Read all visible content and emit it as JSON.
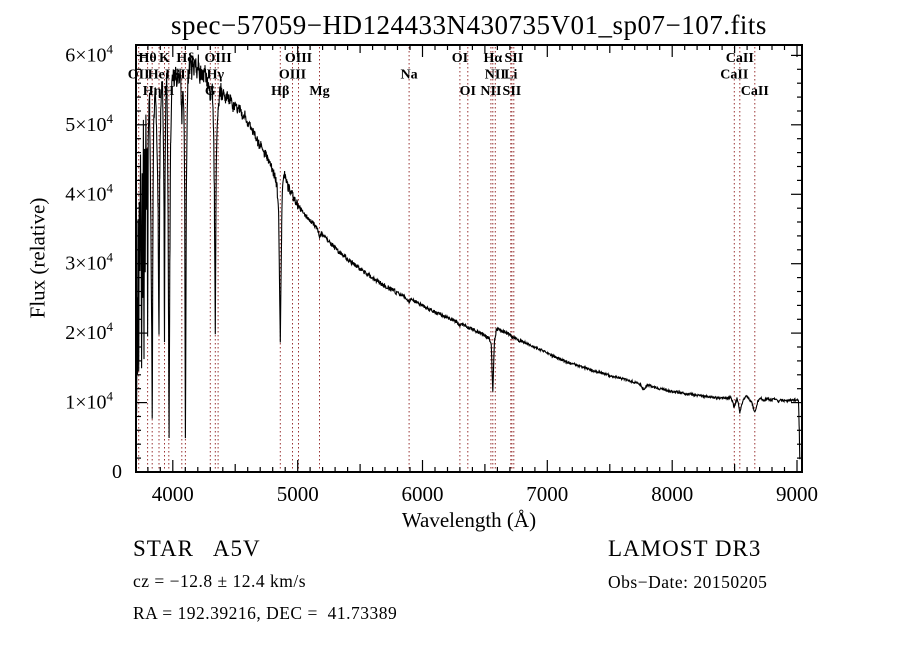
{
  "page": {
    "background": "#ffffff"
  },
  "title": "spec−57059−HD124433N430735V01_sp07−107.fits",
  "annotations": {
    "class_label": "STAR   A5V",
    "survey": "LAMOST DR3",
    "cz": "cz = −12.8 ± 12.4 km/s",
    "obs_date": "Obs−Date: 20150205",
    "radec": "RA = 192.39216, DEC =  41.73389"
  },
  "chart_data": {
    "type": "line",
    "title": "spec−57059−HD124433N430735V01_sp07−107.fits",
    "xlabel": "Wavelength (Å)",
    "ylabel": "Flux (relative)",
    "xlim": [
      3705,
      9040
    ],
    "ylim": [
      0,
      61500
    ],
    "grid": false,
    "legend": "none",
    "x_major_ticks": [
      4000,
      5000,
      6000,
      7000,
      8000,
      9000
    ],
    "y_major_ticks": [
      {
        "f": 0,
        "base": "0",
        "exp": ""
      },
      {
        "f": 10000,
        "base": "1×10",
        "exp": "4"
      },
      {
        "f": 20000,
        "base": "2×10",
        "exp": "4"
      },
      {
        "f": 30000,
        "base": "3×10",
        "exp": "4"
      },
      {
        "f": 40000,
        "base": "4×10",
        "exp": "4"
      },
      {
        "f": 50000,
        "base": "5×10",
        "exp": "4"
      },
      {
        "f": 60000,
        "base": "6×10",
        "exp": "4"
      }
    ],
    "line_color": "#000000",
    "spectral_line_color": "#993333",
    "spectral_lines": [
      {
        "name": "OII",
        "wavelength": 3727,
        "row": 2
      },
      {
        "name": "Hθ",
        "wavelength": 3798,
        "row": 1
      },
      {
        "name": "Hη",
        "wavelength": 3835,
        "row": 3
      },
      {
        "name": "HeI",
        "wavelength": 3889,
        "row": 2
      },
      {
        "name": "K",
        "wavelength": 3933,
        "row": 1
      },
      {
        "name": "H",
        "wavelength": 3968,
        "row": 3
      },
      {
        "name": "SII",
        "wavelength": 4072,
        "row": 2
      },
      {
        "name": "Hδ",
        "wavelength": 4101,
        "row": 1
      },
      {
        "name": "G",
        "wavelength": 4300,
        "row": 3
      },
      {
        "name": "Hγ",
        "wavelength": 4340,
        "row": 2
      },
      {
        "name": "OIII",
        "wavelength": 4363,
        "row": 1
      },
      {
        "name": "Hβ",
        "wavelength": 4861,
        "row": 3
      },
      {
        "name": "OIII",
        "wavelength": 4959,
        "row": 2
      },
      {
        "name": "OIII",
        "wavelength": 5007,
        "row": 1
      },
      {
        "name": "Mg",
        "wavelength": 5175,
        "row": 3
      },
      {
        "name": "Na",
        "wavelength": 5893,
        "row": 2
      },
      {
        "name": "OI",
        "wavelength": 6300,
        "row": 1
      },
      {
        "name": "OI",
        "wavelength": 6363,
        "row": 3
      },
      {
        "name": "NII",
        "wavelength": 6548,
        "row": 3
      },
      {
        "name": "Hα",
        "wavelength": 6563,
        "row": 1
      },
      {
        "name": "NII",
        "wavelength": 6583,
        "row": 2
      },
      {
        "name": "Li",
        "wavelength": 6707,
        "row": 2
      },
      {
        "name": "SII",
        "wavelength": 6716,
        "row": 3
      },
      {
        "name": "SII",
        "wavelength": 6731,
        "row": 1
      },
      {
        "name": "CaII",
        "wavelength": 8498,
        "row": 2
      },
      {
        "name": "CaII",
        "wavelength": 8542,
        "row": 1
      },
      {
        "name": "CaII",
        "wavelength": 8662,
        "row": 3
      }
    ],
    "spectrum_anchors": [
      [
        3710,
        9000
      ],
      [
        3714,
        26000
      ],
      [
        3717,
        14000
      ],
      [
        3721,
        36000
      ],
      [
        3725,
        20000
      ],
      [
        3727,
        15000
      ],
      [
        3731,
        40000
      ],
      [
        3736,
        28000
      ],
      [
        3741,
        46000
      ],
      [
        3746,
        33000
      ],
      [
        3750,
        14000
      ],
      [
        3755,
        43000
      ],
      [
        3759,
        24000
      ],
      [
        3764,
        50000
      ],
      [
        3769,
        17000
      ],
      [
        3774,
        47000
      ],
      [
        3779,
        29000
      ],
      [
        3784,
        51000
      ],
      [
        3790,
        38000
      ],
      [
        3794,
        46000
      ],
      [
        3798,
        19000
      ],
      [
        3803,
        47000
      ],
      [
        3808,
        52000
      ],
      [
        3814,
        53500
      ],
      [
        3820,
        42000
      ],
      [
        3827,
        29000
      ],
      [
        3831,
        20000
      ],
      [
        3835,
        7000
      ],
      [
        3840,
        33000
      ],
      [
        3846,
        50000
      ],
      [
        3853,
        53000
      ],
      [
        3860,
        55000
      ],
      [
        3868,
        51500
      ],
      [
        3875,
        46000
      ],
      [
        3882,
        38000
      ],
      [
        3889,
        19500
      ],
      [
        3895,
        42000
      ],
      [
        3903,
        52000
      ],
      [
        3910,
        55500
      ],
      [
        3918,
        56000
      ],
      [
        3925,
        47000
      ],
      [
        3929,
        38000
      ],
      [
        3933,
        18000
      ],
      [
        3938,
        44000
      ],
      [
        3944,
        54000
      ],
      [
        3950,
        56500
      ],
      [
        3956,
        52000
      ],
      [
        3962,
        36000
      ],
      [
        3966,
        20000
      ],
      [
        3970,
        4500
      ],
      [
        3976,
        30000
      ],
      [
        3982,
        47000
      ],
      [
        3989,
        54000
      ],
      [
        3996,
        56500
      ],
      [
        4004,
        57000
      ],
      [
        4012,
        55500
      ],
      [
        4020,
        57500
      ],
      [
        4030,
        56000
      ],
      [
        4040,
        58000
      ],
      [
        4050,
        57000
      ],
      [
        4060,
        58500
      ],
      [
        4068,
        53000
      ],
      [
        4074,
        51000
      ],
      [
        4082,
        55500
      ],
      [
        4090,
        50000
      ],
      [
        4095,
        40000
      ],
      [
        4101,
        4000
      ],
      [
        4108,
        40000
      ],
      [
        4115,
        52000
      ],
      [
        4122,
        56500
      ],
      [
        4130,
        58000
      ],
      [
        4140,
        59000
      ],
      [
        4150,
        57500
      ],
      [
        4160,
        59500
      ],
      [
        4170,
        58000
      ],
      [
        4182,
        59000
      ],
      [
        4194,
        57500
      ],
      [
        4206,
        59000
      ],
      [
        4218,
        57000
      ],
      [
        4230,
        58000
      ],
      [
        4244,
        56500
      ],
      [
        4258,
        57500
      ],
      [
        4272,
        56000
      ],
      [
        4286,
        56500
      ],
      [
        4295,
        55000
      ],
      [
        4302,
        54000
      ],
      [
        4310,
        55500
      ],
      [
        4318,
        54500
      ],
      [
        4326,
        50000
      ],
      [
        4333,
        40000
      ],
      [
        4340,
        19000
      ],
      [
        4348,
        44000
      ],
      [
        4356,
        51000
      ],
      [
        4363,
        52500
      ],
      [
        4372,
        54000
      ],
      [
        4382,
        55000
      ],
      [
        4394,
        54000
      ],
      [
        4408,
        55000
      ],
      [
        4422,
        53500
      ],
      [
        4436,
        54500
      ],
      [
        4450,
        53500
      ],
      [
        4466,
        54000
      ],
      [
        4482,
        52500
      ],
      [
        4500,
        53000
      ],
      [
        4520,
        52000
      ],
      [
        4540,
        52500
      ],
      [
        4560,
        51000
      ],
      [
        4580,
        51500
      ],
      [
        4605,
        50000
      ],
      [
        4630,
        49500
      ],
      [
        4655,
        48500
      ],
      [
        4680,
        47500
      ],
      [
        4705,
        47000
      ],
      [
        4730,
        46000
      ],
      [
        4755,
        45500
      ],
      [
        4780,
        44500
      ],
      [
        4800,
        43500
      ],
      [
        4820,
        42500
      ],
      [
        4835,
        41000
      ],
      [
        4848,
        37000
      ],
      [
        4861,
        18000
      ],
      [
        4872,
        36000
      ],
      [
        4880,
        41500
      ],
      [
        4890,
        43000
      ],
      [
        4900,
        42500
      ],
      [
        4912,
        41500
      ],
      [
        4925,
        41000
      ],
      [
        4940,
        40500
      ],
      [
        4959,
        39800
      ],
      [
        4975,
        39200
      ],
      [
        4990,
        38800
      ],
      [
        5007,
        38300
      ],
      [
        5025,
        37800
      ],
      [
        5045,
        37300
      ],
      [
        5070,
        36800
      ],
      [
        5100,
        36200
      ],
      [
        5130,
        35700
      ],
      [
        5160,
        35000
      ],
      [
        5175,
        33800
      ],
      [
        5190,
        34400
      ],
      [
        5210,
        33900
      ],
      [
        5235,
        33400
      ],
      [
        5265,
        32900
      ],
      [
        5300,
        32300
      ],
      [
        5340,
        31600
      ],
      [
        5380,
        31000
      ],
      [
        5420,
        30400
      ],
      [
        5460,
        29800
      ],
      [
        5500,
        29300
      ],
      [
        5540,
        28700
      ],
      [
        5580,
        28200
      ],
      [
        5620,
        27700
      ],
      [
        5660,
        27200
      ],
      [
        5700,
        26800
      ],
      [
        5740,
        26400
      ],
      [
        5780,
        26000
      ],
      [
        5820,
        25600
      ],
      [
        5860,
        25200
      ],
      [
        5893,
        24400
      ],
      [
        5910,
        24900
      ],
      [
        5950,
        24500
      ],
      [
        5990,
        24100
      ],
      [
        6030,
        23700
      ],
      [
        6070,
        23300
      ],
      [
        6110,
        22900
      ],
      [
        6150,
        22600
      ],
      [
        6190,
        22300
      ],
      [
        6230,
        22000
      ],
      [
        6270,
        21700
      ],
      [
        6300,
        21200
      ],
      [
        6320,
        21300
      ],
      [
        6340,
        21100
      ],
      [
        6363,
        20800
      ],
      [
        6390,
        20700
      ],
      [
        6420,
        20400
      ],
      [
        6450,
        20100
      ],
      [
        6480,
        19800
      ],
      [
        6510,
        19500
      ],
      [
        6535,
        19200
      ],
      [
        6550,
        18500
      ],
      [
        6563,
        11500
      ],
      [
        6576,
        18800
      ],
      [
        6590,
        20300
      ],
      [
        6605,
        20600
      ],
      [
        6625,
        20400
      ],
      [
        6650,
        20200
      ],
      [
        6675,
        20000
      ],
      [
        6700,
        19800
      ],
      [
        6716,
        19500
      ],
      [
        6731,
        19300
      ],
      [
        6760,
        19100
      ],
      [
        6800,
        18800
      ],
      [
        6840,
        18500
      ],
      [
        6880,
        18100
      ],
      [
        6920,
        17800
      ],
      [
        6960,
        17500
      ],
      [
        7000,
        17100
      ],
      [
        7050,
        16700
      ],
      [
        7100,
        16300
      ],
      [
        7150,
        15900
      ],
      [
        7200,
        15600
      ],
      [
        7250,
        15300
      ],
      [
        7300,
        15000
      ],
      [
        7350,
        14700
      ],
      [
        7400,
        14400
      ],
      [
        7450,
        14200
      ],
      [
        7500,
        13900
      ],
      [
        7550,
        13700
      ],
      [
        7600,
        13400
      ],
      [
        7650,
        13200
      ],
      [
        7700,
        12900
      ],
      [
        7740,
        12700
      ],
      [
        7770,
        11900
      ],
      [
        7800,
        12500
      ],
      [
        7850,
        12300
      ],
      [
        7900,
        12000
      ],
      [
        7950,
        11800
      ],
      [
        8000,
        11600
      ],
      [
        8050,
        11500
      ],
      [
        8100,
        11300
      ],
      [
        8150,
        11200
      ],
      [
        8200,
        11000
      ],
      [
        8250,
        10900
      ],
      [
        8300,
        10800
      ],
      [
        8350,
        10700
      ],
      [
        8400,
        10700
      ],
      [
        8440,
        10600
      ],
      [
        8470,
        10800
      ],
      [
        8498,
        9300
      ],
      [
        8520,
        10700
      ],
      [
        8542,
        8600
      ],
      [
        8565,
        10200
      ],
      [
        8590,
        10900
      ],
      [
        8615,
        10600
      ],
      [
        8640,
        9900
      ],
      [
        8662,
        8500
      ],
      [
        8685,
        10100
      ],
      [
        8710,
        10600
      ],
      [
        8735,
        10300
      ],
      [
        8760,
        10600
      ],
      [
        8790,
        10300
      ],
      [
        8820,
        10500
      ],
      [
        8850,
        10200
      ],
      [
        8880,
        10400
      ],
      [
        8910,
        10200
      ],
      [
        8940,
        10400
      ],
      [
        8970,
        10300
      ],
      [
        9000,
        10400
      ],
      [
        9012,
        10200
      ],
      [
        9018,
        6000
      ],
      [
        9022,
        2000
      ]
    ],
    "noise_profile": [
      {
        "max_wavelength": 4400,
        "amplitude": 1300
      },
      {
        "max_wavelength": 5000,
        "amplitude": 700
      },
      {
        "max_wavelength": 5800,
        "amplitude": 350
      },
      {
        "max_wavelength": 6800,
        "amplitude": 250
      },
      {
        "max_wavelength": 9040,
        "amplitude": 170
      }
    ]
  }
}
